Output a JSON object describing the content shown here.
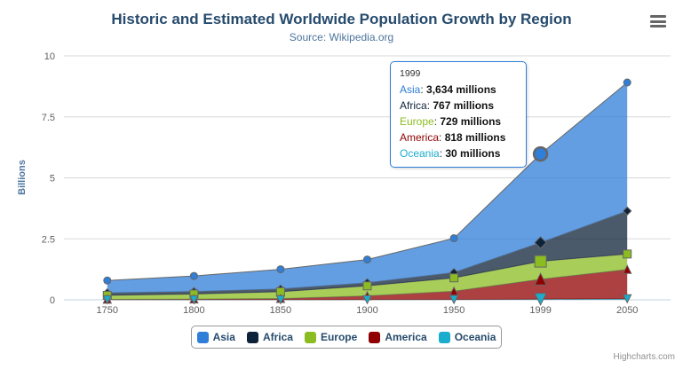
{
  "chart": {
    "title": "Historic and Estimated Worldwide Population Growth by Region",
    "subtitle": "Source: Wikipedia.org",
    "y_axis_title": "Billions",
    "credits": "Highcharts.com"
  },
  "colors": {
    "title": "#274b6d",
    "subtitle": "#4d759e",
    "axis_label": "#606060",
    "grid_line": "#d8d8d8",
    "axis_line": "#c0d0e0",
    "series_outline": "#666666",
    "tooltip_border": "#2f7ed8",
    "legend_text": "#274b6d",
    "export_icon": "#666666"
  },
  "chart_data": {
    "type": "area",
    "stacking": "normal",
    "title": "Historic and Estimated Worldwide Population Growth by Region",
    "subtitle": "Source: Wikipedia.org",
    "xlabel": "",
    "ylabel": "Billions",
    "unit": "millions",
    "ylim": [
      0,
      10
    ],
    "yticks": [
      0,
      2.5,
      5,
      7.5,
      10
    ],
    "grid": "horizontal",
    "legend_position": "bottom-center",
    "categories": [
      "1750",
      "1800",
      "1850",
      "1900",
      "1950",
      "1999",
      "2050"
    ],
    "series": [
      {
        "name": "Asia",
        "color": "#2f7ed8",
        "marker": "circle",
        "values": [
          502,
          635,
          809,
          947,
          1402,
          3634,
          5268
        ]
      },
      {
        "name": "Africa",
        "color": "#0d233a",
        "marker": "diamond",
        "values": [
          106,
          107,
          111,
          133,
          221,
          767,
          1766
        ]
      },
      {
        "name": "Europe",
        "color": "#8bbc21",
        "marker": "square",
        "values": [
          163,
          203,
          276,
          408,
          547,
          729,
          628
        ]
      },
      {
        "name": "America",
        "color": "#910000",
        "marker": "triangle",
        "values": [
          18,
          31,
          54,
          156,
          339,
          818,
          1201
        ]
      },
      {
        "name": "Oceania",
        "color": "#1aadce",
        "marker": "triangle-down",
        "values": [
          2,
          2,
          2,
          6,
          13,
          30,
          46
        ]
      }
    ]
  },
  "tooltip": {
    "header": "1999",
    "hover_index": 5,
    "rows": [
      {
        "series": "Asia",
        "color": "#2f7ed8",
        "value": "3,634 millions"
      },
      {
        "series": "Africa",
        "color": "#0d233a",
        "value": "767 millions"
      },
      {
        "series": "Europe",
        "color": "#8bbc21",
        "value": "729 millions"
      },
      {
        "series": "America",
        "color": "#910000",
        "value": "818 millions"
      },
      {
        "series": "Oceania",
        "color": "#1aadce",
        "value": "30 millions"
      }
    ]
  }
}
